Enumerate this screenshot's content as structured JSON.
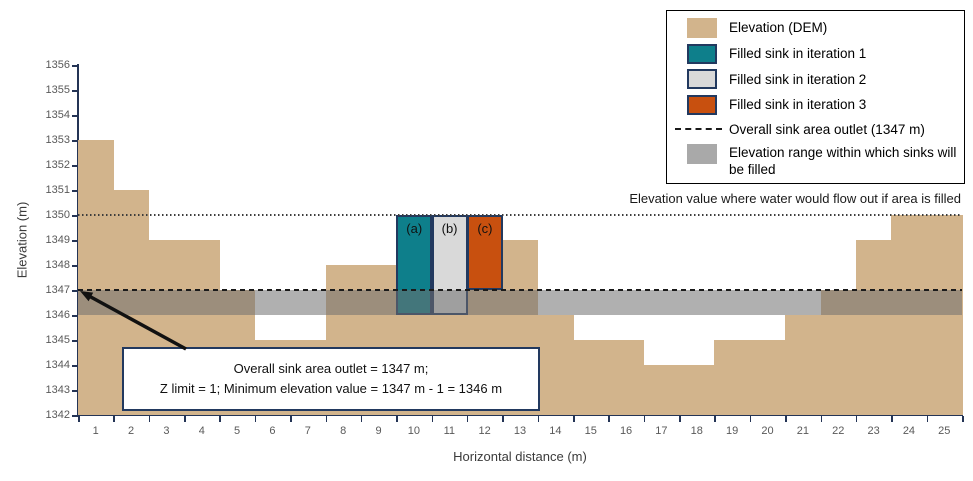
{
  "chart_data": {
    "type": "bar",
    "title": "",
    "xlabel": "Horizontal distance (m)",
    "ylabel": "Elevation (m)",
    "ylim": [
      1342,
      1356
    ],
    "ytick_step": 1,
    "categories": [
      1,
      2,
      3,
      4,
      5,
      6,
      7,
      8,
      9,
      10,
      11,
      12,
      13,
      14,
      15,
      16,
      17,
      18,
      19,
      20,
      21,
      22,
      23,
      24,
      25
    ],
    "series": [
      {
        "name": "Elevation (DEM)",
        "color": "#d2b48c",
        "values": [
          1353,
          1351,
          1349,
          1349,
          1347,
          1345,
          1345,
          1348,
          1348,
          1346,
          1346,
          1347,
          1349,
          1346,
          1345,
          1345,
          1344,
          1344,
          1345,
          1345,
          1346,
          1347,
          1349,
          1350,
          1350
        ]
      }
    ],
    "filled_sinks": [
      {
        "x": 10,
        "from": 1346,
        "to": 1350,
        "label": "(a)",
        "name": "Filled sink in iteration 1",
        "color": "#0e7f8b"
      },
      {
        "x": 11,
        "from": 1346,
        "to": 1350,
        "label": "(b)",
        "name": "Filled sink in iteration 2",
        "color": "#d9d9d9"
      },
      {
        "x": 12,
        "from": 1347,
        "to": 1350,
        "label": "(c)",
        "name": "Filled sink in iteration 3",
        "color": "#c8500f"
      }
    ],
    "outlet_line": {
      "elevation": 1347,
      "style": "dashed"
    },
    "flow_out_line": {
      "elevation": 1350,
      "style": "dotted",
      "label": "Elevation value where water would flow out if area is filled"
    },
    "fill_band": {
      "from": 1346,
      "to": 1347,
      "color": "#a6a6a6"
    },
    "legend_position": "top-right",
    "grid": false
  },
  "legend": {
    "items": [
      {
        "swatch": "tan",
        "label": "Elevation (DEM)"
      },
      {
        "swatch": "teal",
        "label": "Filled sink in iteration 1"
      },
      {
        "swatch": "lightgray",
        "label": "Filled sink in iteration 2"
      },
      {
        "swatch": "orange",
        "label": "Filled sink in iteration 3"
      },
      {
        "swatch": "dashed-line",
        "label": "Overall sink area outlet (1347 m)"
      },
      {
        "swatch": "grayband",
        "label": "Elevation range within which sinks will be filled"
      }
    ]
  },
  "annotation": {
    "line1": "Overall sink area outlet = 1347 m;",
    "line2": "Z limit = 1; Minimum elevation value = 1347 m - 1 = 1346 m"
  },
  "colors": {
    "dem": "#d2b48c",
    "sink_iter1": "#0e7f8b",
    "sink_iter2": "#d9d9d9",
    "sink_iter3": "#c8500f",
    "bar_border": "#22395f",
    "band": "#a6a6a6",
    "axis": "#243455",
    "tick_text": "#595959"
  }
}
